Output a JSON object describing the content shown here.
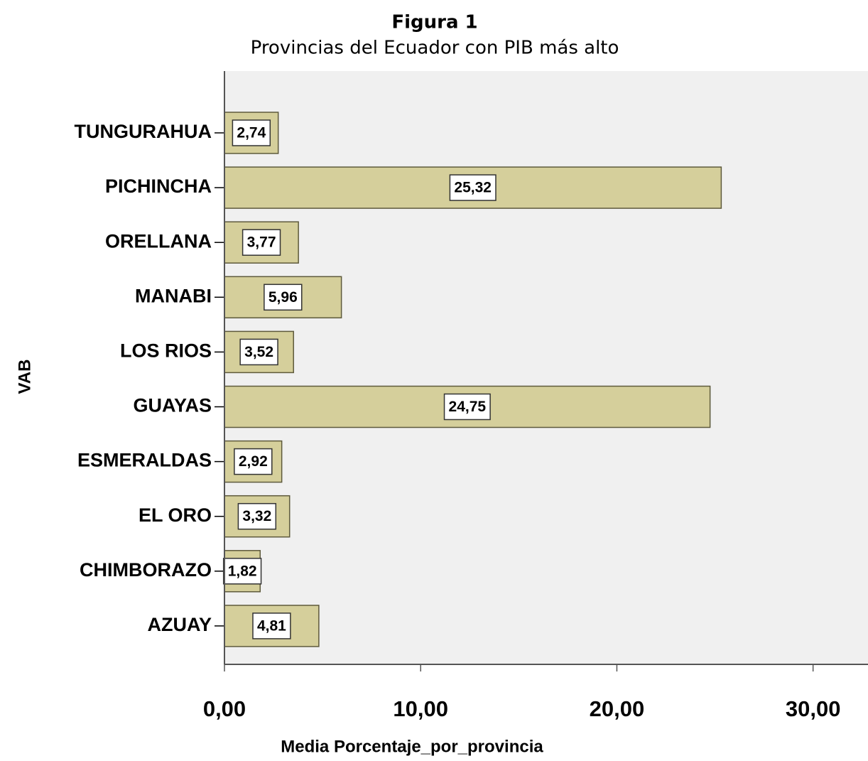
{
  "chart_data": {
    "type": "barh",
    "title": "Figura 1",
    "subtitle": "Provincias del Ecuador con PIB más alto",
    "xlabel": "Media Porcentaje_por_provincia",
    "ylabel": "VAB",
    "categories": [
      "TUNGURAHUA",
      "PICHINCHA",
      "ORELLANA",
      "MANABI",
      "LOS RIOS",
      "GUAYAS",
      "ESMERALDAS",
      "EL ORO",
      "CHIMBORAZO",
      "AZUAY"
    ],
    "values": [
      2.74,
      25.32,
      3.77,
      5.96,
      3.52,
      24.75,
      2.92,
      3.32,
      1.82,
      4.81
    ],
    "value_labels": [
      "2,74",
      "25,32",
      "3,77",
      "5,96",
      "3,52",
      "24,75",
      "2,92",
      "3,32",
      "1,82",
      "4,81"
    ],
    "color": "#d5cf9b",
    "xlim": [
      0,
      32.8
    ],
    "xticks": [
      {
        "value": 0,
        "label": "0,00"
      },
      {
        "value": 10,
        "label": "10,00"
      },
      {
        "value": 20,
        "label": "20,00"
      },
      {
        "value": 30,
        "label": "30,00"
      }
    ]
  }
}
